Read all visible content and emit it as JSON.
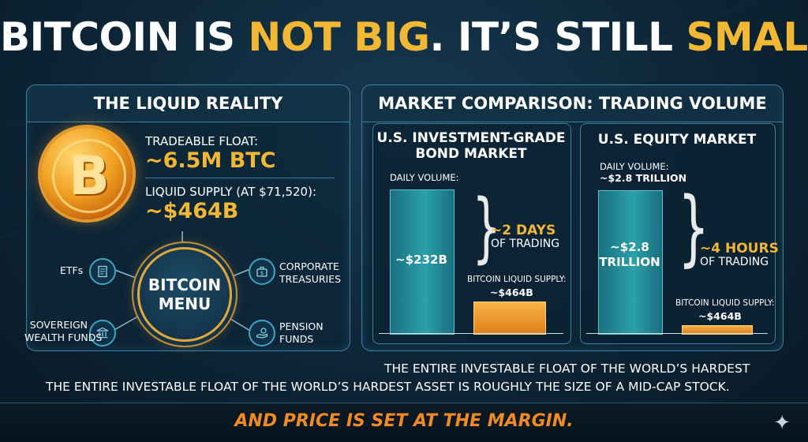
{
  "title": {
    "part1": "BITCOIN IS ",
    "part2": "NOT BIG",
    "part3": ". IT’S STILL ",
    "part4": "SMALL."
  },
  "liquid": {
    "heading": "THE LIQUID REALITY",
    "coin_symbol": "B",
    "float_label": "TRADEABLE FLOAT:",
    "float_value": "~6.5M BTC",
    "supply_label": "LIQUID SUPPLY (AT $71,520):",
    "supply_value": "~$464B",
    "hub_line1": "BITCOIN",
    "hub_line2": "MENU",
    "nodes": {
      "etfs": "ETFs",
      "corporate_l1": "CORPORATE",
      "corporate_l2": "TREASURIES",
      "sovereign_l1": "SOVEREIGN",
      "sovereign_l2": "WEALTH FUNDS",
      "pension_l1": "PENSION",
      "pension_l2": "FUNDS"
    }
  },
  "comparison": {
    "heading": "MARKET COMPARISON: TRADING VOLUME",
    "bond": {
      "title_l1": "U.S. INVESTMENT-GRADE",
      "title_l2": "BOND MARKET",
      "volume_label": "DAILY VOLUME:",
      "bar_value": "~$232B",
      "time_value": "~2 DAYS",
      "time_label": "OF TRADING",
      "btc_label": "BITCOIN LIQUID SUPPLY:",
      "btc_value": "~$464B"
    },
    "equity": {
      "title": "U.S. EQUITY MARKET",
      "volume_label": "DAILY VOLUME:",
      "volume_value": "~$2.8 TRILLION",
      "bar_value_l1": "~$2.8",
      "bar_value_l2": "TRILLION",
      "time_value": "~4 HOURS",
      "time_label": "OF TRADING",
      "btc_label": "BITCOIN LIQUID SUPPLY:",
      "btc_value": "~$464B"
    }
  },
  "footer": {
    "line1": "THE ENTIRE INVESTABLE FLOAT OF THE WORLD’S HARDEST",
    "line2": "THE ENTIRE INVESTABLE FLOAT OF THE WORLD’S HARDEST ASSET IS ROUGHLY THE SIZE OF A MID-CAP STOCK.",
    "bottom": "AND PRICE IS SET AT THE MARGIN."
  },
  "icons": {
    "etfs": "document-dollar-icon",
    "corporate": "briefcase-dollar-icon",
    "sovereign": "bank-icon",
    "pension": "hand-coins-icon",
    "sparkle": "sparkle-icon"
  },
  "colors": {
    "gold": "#f2b733",
    "orange": "#f28a22",
    "teal": "#2aa1a9",
    "border": "#3e7f9c"
  }
}
